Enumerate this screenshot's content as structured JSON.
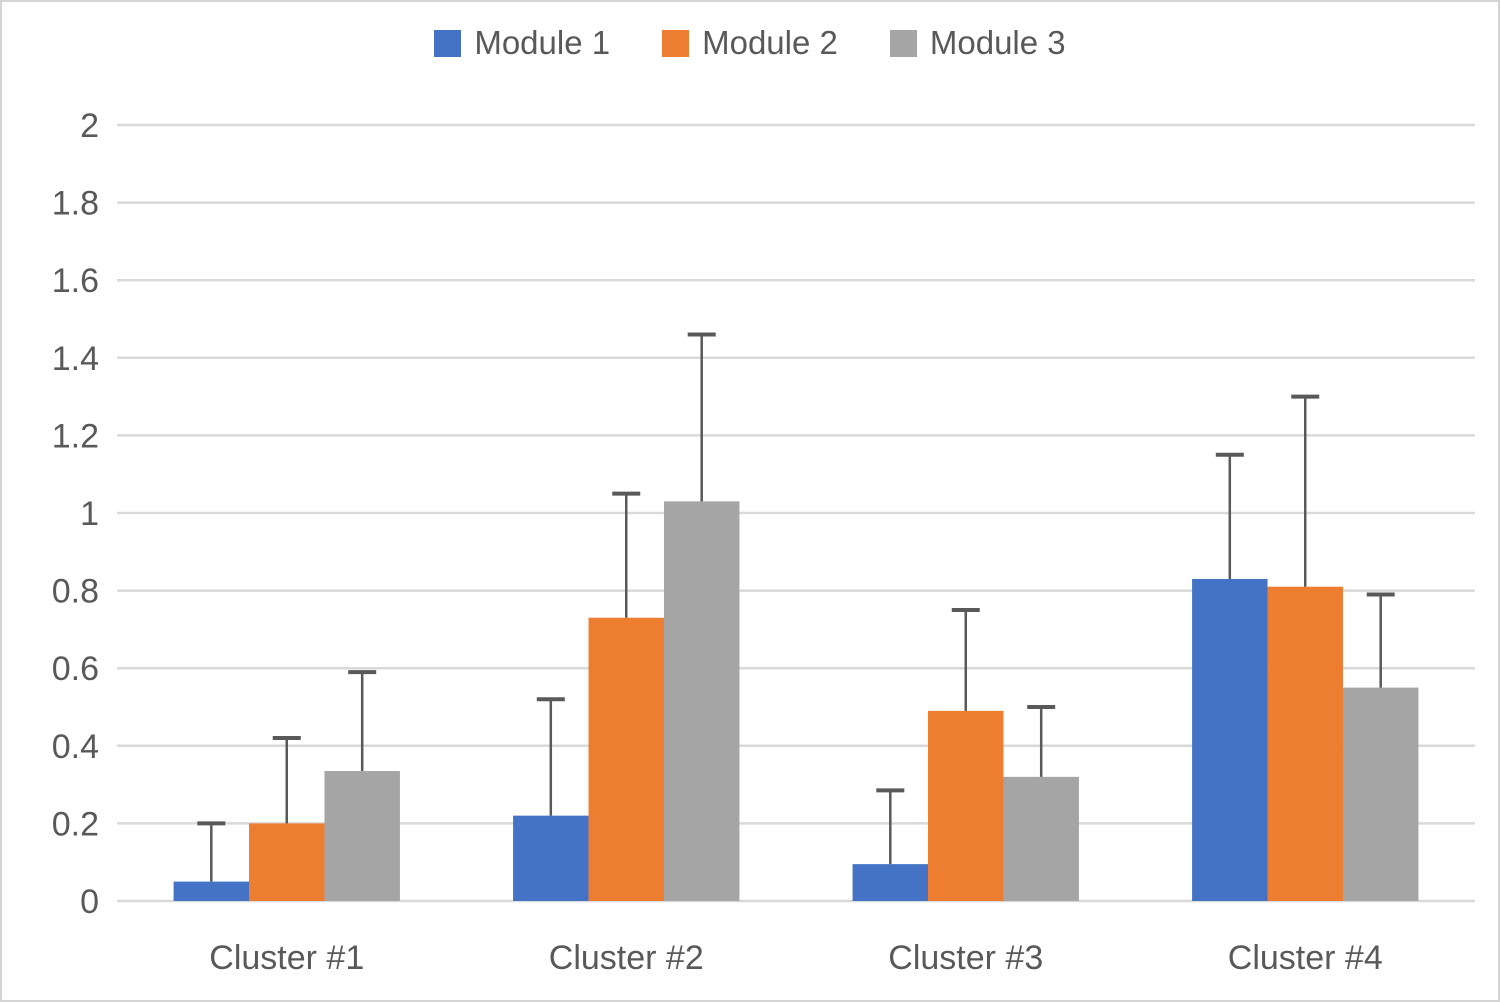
{
  "chart_data": {
    "type": "bar",
    "title": "",
    "categories": [
      "Cluster #1",
      "Cluster #2",
      "Cluster #3",
      "Cluster #4"
    ],
    "series": [
      {
        "name": "Module 1",
        "color": "#4472C4",
        "values": [
          0.05,
          0.22,
          0.095,
          0.83
        ],
        "errors_plus": [
          0.15,
          0.3,
          0.19,
          0.32
        ]
      },
      {
        "name": "Module 2",
        "color": "#ED7D31",
        "values": [
          0.2,
          0.73,
          0.49,
          0.81
        ],
        "errors_plus": [
          0.22,
          0.32,
          0.26,
          0.49
        ]
      },
      {
        "name": "Module 3",
        "color": "#A5A5A5",
        "values": [
          0.335,
          1.03,
          0.32,
          0.55
        ],
        "errors_plus": [
          0.255,
          0.43,
          0.18,
          0.24
        ]
      }
    ],
    "xlabel": "",
    "ylabel": "",
    "ylim": [
      0,
      2
    ],
    "ytick_step": 0.2,
    "ytick_labels": [
      "0",
      "0.2",
      "0.4",
      "0.6",
      "0.8",
      "1",
      "1.2",
      "1.4",
      "1.6",
      "1.8",
      "2"
    ],
    "grid": true,
    "legend_position": "top",
    "colors": {
      "gridline": "#D9D9D9",
      "error_bar": "#595959",
      "axis_text": "#595959",
      "background": "#FFFFFF",
      "frame_border": "#D4D4D4"
    }
  }
}
